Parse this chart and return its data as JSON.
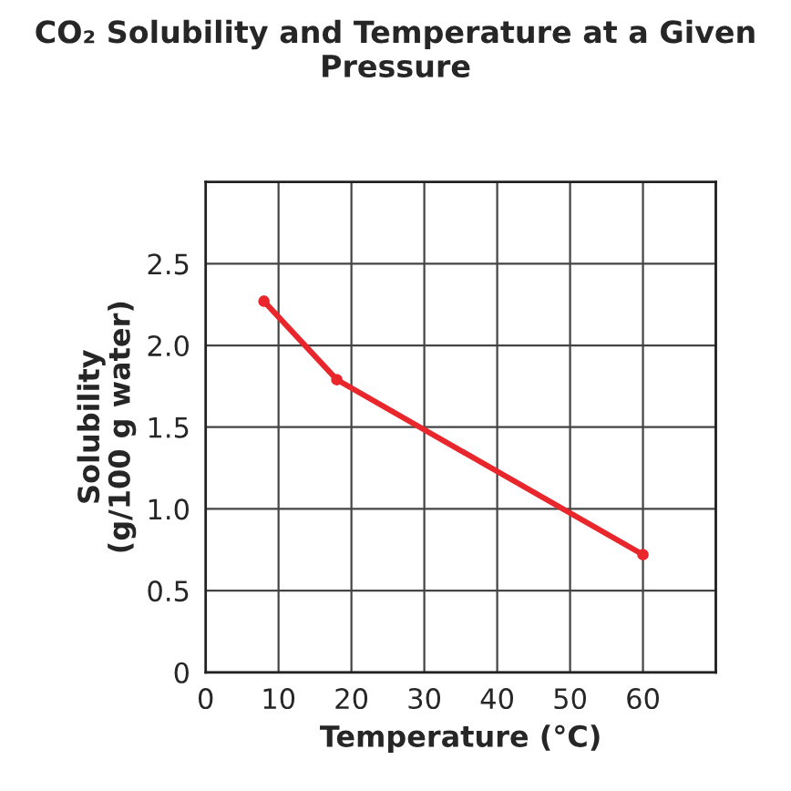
{
  "chart_data": {
    "type": "line",
    "title": "CO₂ Solubility and Temperature at a Given Pressure",
    "xlabel": "Temperature (°C)",
    "ylabel": "Solubility\n(g/100 g water)",
    "x": [
      8,
      18,
      60
    ],
    "series": [
      {
        "color": "#e8262c",
        "values": [
          2.27,
          1.79,
          0.72
        ]
      }
    ],
    "xlim": [
      0,
      70
    ],
    "xticks": [
      0,
      10,
      20,
      30,
      40,
      50,
      60,
      {
        "value": 70,
        "label": null
      }
    ],
    "ylim": [
      0,
      3.0
    ],
    "yticks": [
      0,
      0.5,
      {
        "value": 1,
        "label": "1.0"
      },
      1.5,
      {
        "value": 2,
        "label": "2.0"
      },
      2.5,
      {
        "value": 3.0,
        "label": null
      }
    ],
    "grid": true,
    "marker": "circle",
    "line_style": "solid"
  }
}
